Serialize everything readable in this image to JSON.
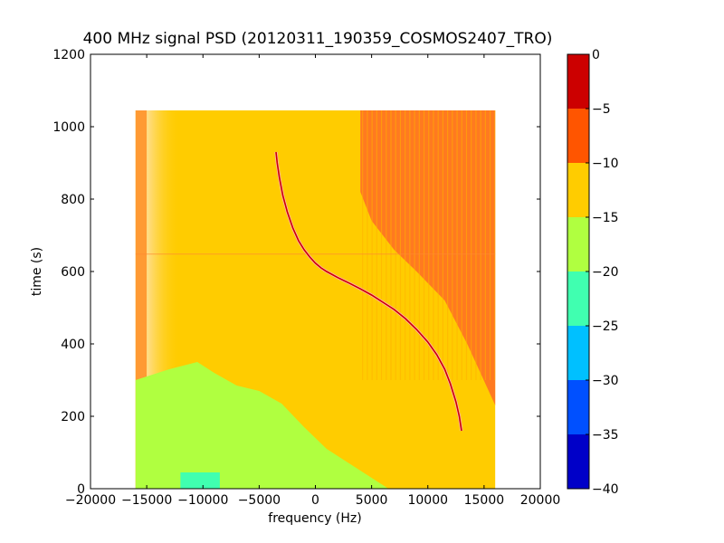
{
  "chart_data": {
    "type": "heatmap",
    "title": "400 MHz signal PSD (20120311_190359_COSMOS2407_TRO)",
    "xlabel": "frequency (Hz)",
    "ylabel": "time (s)",
    "xlim": [
      -20000,
      20000
    ],
    "ylim": [
      0,
      1200
    ],
    "x_ticks": [
      -20000,
      -15000,
      -10000,
      -5000,
      0,
      5000,
      10000,
      15000,
      20000
    ],
    "y_ticks": [
      0,
      200,
      400,
      600,
      800,
      1000,
      1200
    ],
    "x_tick_labels": [
      "−20000",
      "−15000",
      "−10000",
      "−5000",
      "0",
      "5000",
      "10000",
      "15000",
      "20000"
    ],
    "y_tick_labels": [
      "0",
      "200",
      "400",
      "600",
      "800",
      "1000",
      "1200"
    ],
    "data_extent": {
      "x": [
        -16000,
        16000
      ],
      "y": [
        0,
        1045
      ]
    },
    "grid": false,
    "colorbar": {
      "levels": [
        -40,
        -35,
        -30,
        -25,
        -20,
        -15,
        -10,
        -5,
        0
      ],
      "tick_labels": [
        "−40",
        "−35",
        "−30",
        "−25",
        "−20",
        "−15",
        "−10",
        "−5",
        "0"
      ],
      "colors": [
        "#0000c8",
        "#0050ff",
        "#00c0ff",
        "#40ffb0",
        "#b0ff40",
        "#ffcc00",
        "#ff5500",
        "#cc0000"
      ]
    },
    "regions": [
      {
        "name": "background",
        "level": -12.5,
        "color": "#ffcc00",
        "x": [
          -16000,
          16000
        ],
        "y": [
          0,
          1045
        ]
      },
      {
        "name": "left-edge-band",
        "level": -7.5,
        "color": "#ff9a33",
        "x": [
          -16000,
          -15000
        ],
        "y": [
          0,
          1045
        ]
      },
      {
        "name": "left-fade-band",
        "level": -12.5,
        "color": "#ffd780",
        "x": [
          -15000,
          -12000
        ],
        "y": [
          300,
          1045
        ]
      },
      {
        "name": "low-power-region",
        "level": -17.5,
        "color": "#b0ff40",
        "polygon": [
          [
            -16000,
            0
          ],
          [
            -16000,
            300
          ],
          [
            -13000,
            330
          ],
          [
            -10500,
            350
          ],
          [
            -9000,
            320
          ],
          [
            -7000,
            285
          ],
          [
            -5000,
            270
          ],
          [
            -3000,
            235
          ],
          [
            -1000,
            170
          ],
          [
            1000,
            110
          ],
          [
            3000,
            70
          ],
          [
            5000,
            30
          ],
          [
            6500,
            0
          ]
        ]
      },
      {
        "name": "lowest-power-patch",
        "level": -22.5,
        "color": "#40ffb0",
        "x": [
          -12000,
          -8500
        ],
        "y": [
          0,
          45
        ]
      },
      {
        "name": "high-power-region",
        "level": -7.5,
        "color": "#ff7a20",
        "polygon": [
          [
            4000,
            1045
          ],
          [
            16000,
            1045
          ],
          [
            16000,
            230
          ],
          [
            13500,
            400
          ],
          [
            11500,
            520
          ],
          [
            9000,
            600
          ],
          [
            7000,
            660
          ],
          [
            5000,
            740
          ],
          [
            4000,
            820
          ]
        ]
      }
    ],
    "series": [
      {
        "name": "signal-trace",
        "color": "#cc0000",
        "x": [
          -3500,
          -3400,
          -3200,
          -2900,
          -2500,
          -2000,
          -1500,
          -1000,
          -500,
          0,
          500,
          1000,
          2000,
          3000,
          4000,
          5000,
          6000,
          7000,
          8000,
          9000,
          10000,
          10800,
          11500,
          12000,
          12500,
          12800,
          13000
        ],
        "y": [
          930,
          900,
          860,
          810,
          765,
          720,
          685,
          660,
          640,
          623,
          610,
          600,
          583,
          568,
          552,
          535,
          515,
          495,
          470,
          440,
          405,
          370,
          330,
          290,
          240,
          200,
          160
        ]
      }
    ]
  }
}
